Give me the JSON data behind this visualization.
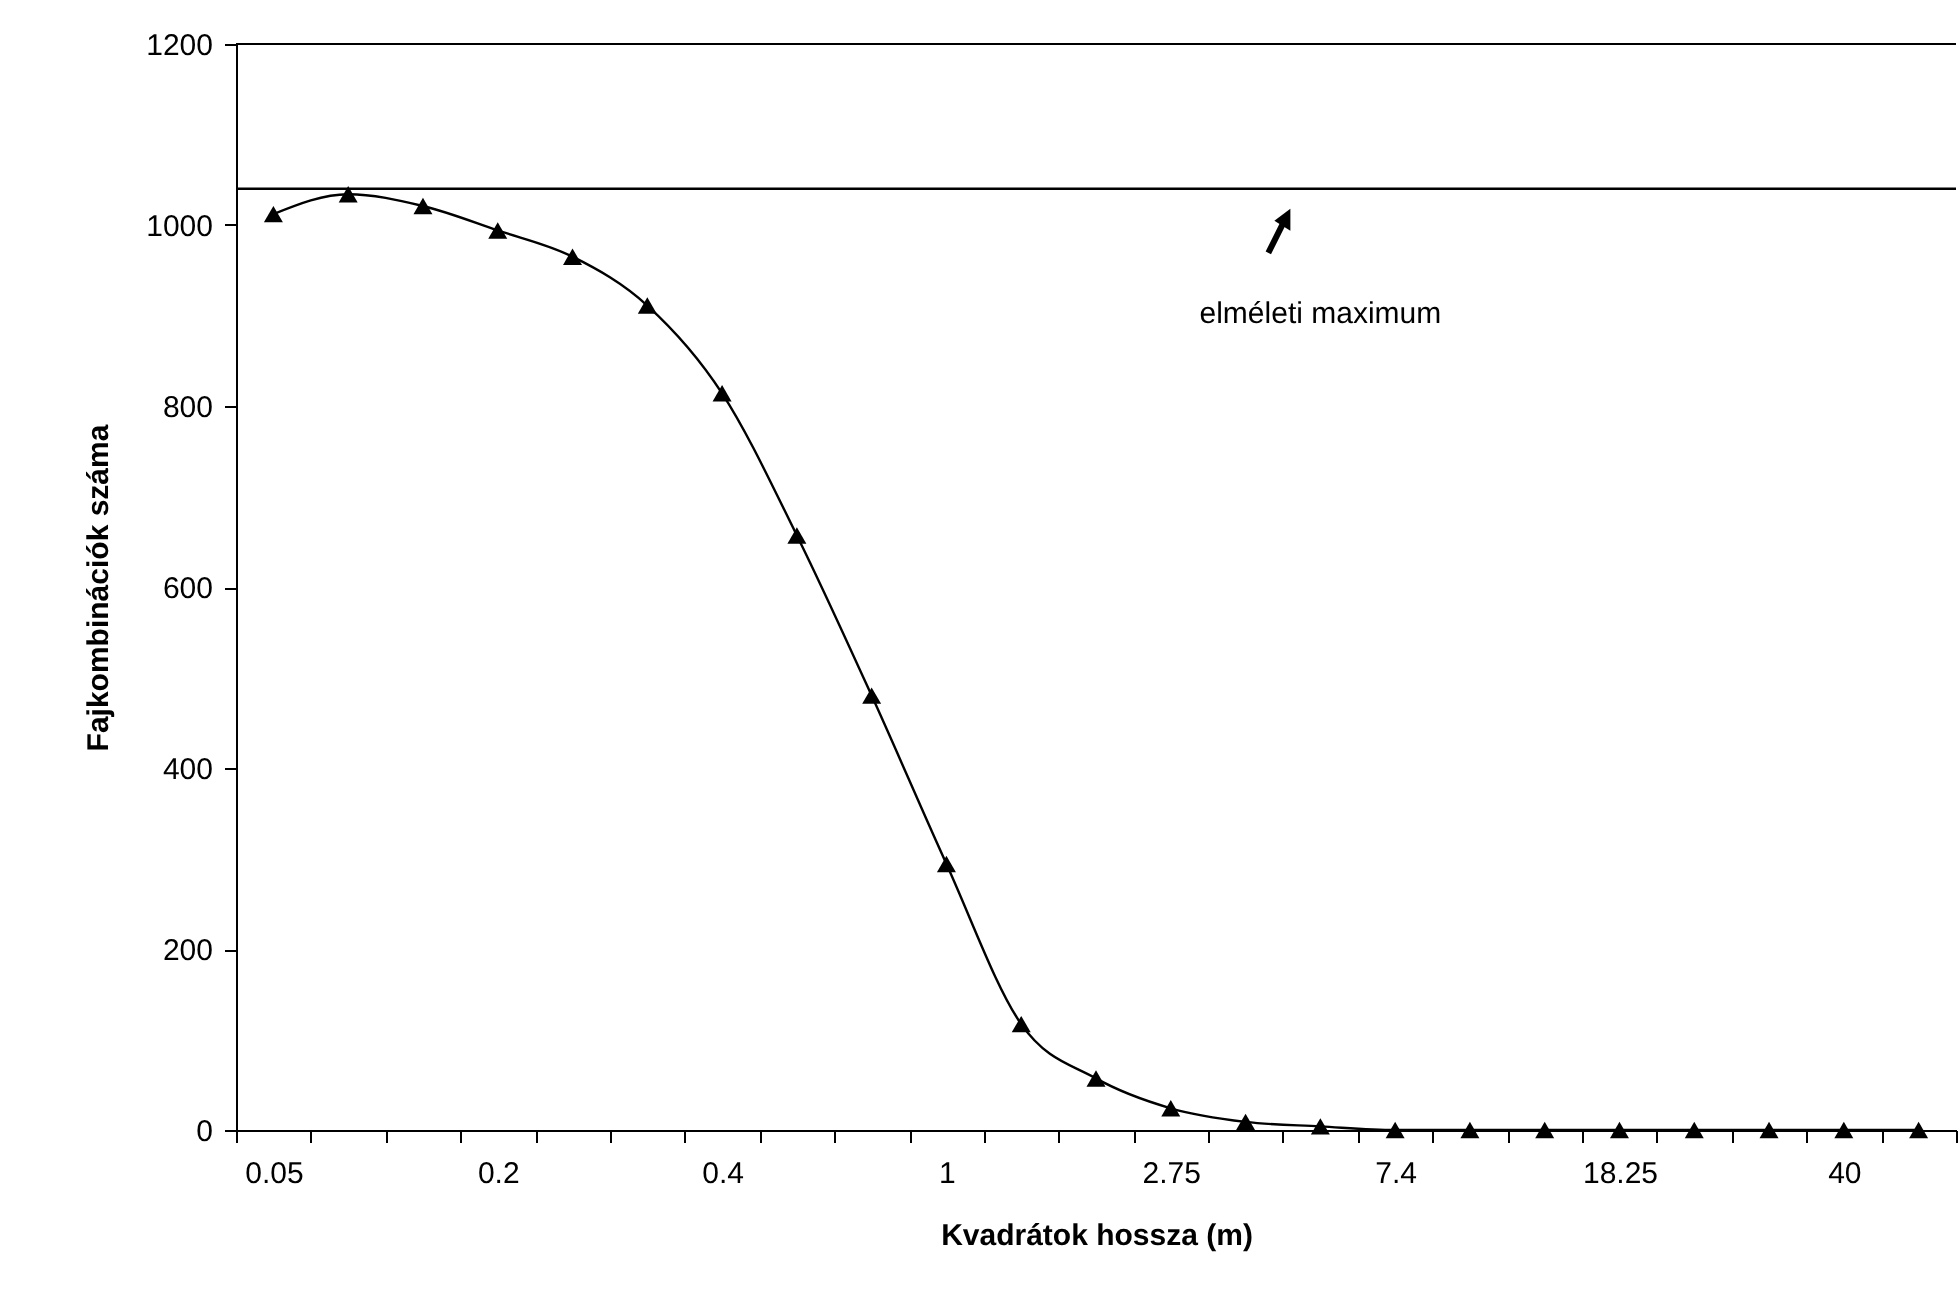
{
  "chart_data": {
    "type": "line",
    "xlabel": "Kvadrátok hossza (m)",
    "ylabel": "Fajkombinációk száma",
    "categories": [
      "0.05",
      null,
      null,
      "0.2",
      null,
      null,
      "0.4",
      null,
      null,
      "1",
      null,
      null,
      "2.75",
      null,
      null,
      "7.4",
      null,
      null,
      "18.25",
      null,
      null,
      "40",
      null
    ],
    "series": [
      {
        "color": "#000000",
        "values": [
          1012,
          1034,
          1021,
          994,
          965,
          911,
          814,
          657,
          480,
          294,
          117,
          57,
          24,
          9,
          4,
          0,
          0,
          0,
          0,
          0,
          0,
          0,
          0
        ]
      }
    ],
    "ylim": [
      0,
      1200
    ],
    "yticks": [
      0,
      200,
      400,
      600,
      800,
      1000,
      1200
    ],
    "grid": false,
    "marker": "triangle",
    "line_style": "solid",
    "ref_lines": [
      {
        "axis": "y",
        "value": 1040,
        "label": "elméleti maximum",
        "color": "#000000"
      }
    ]
  }
}
